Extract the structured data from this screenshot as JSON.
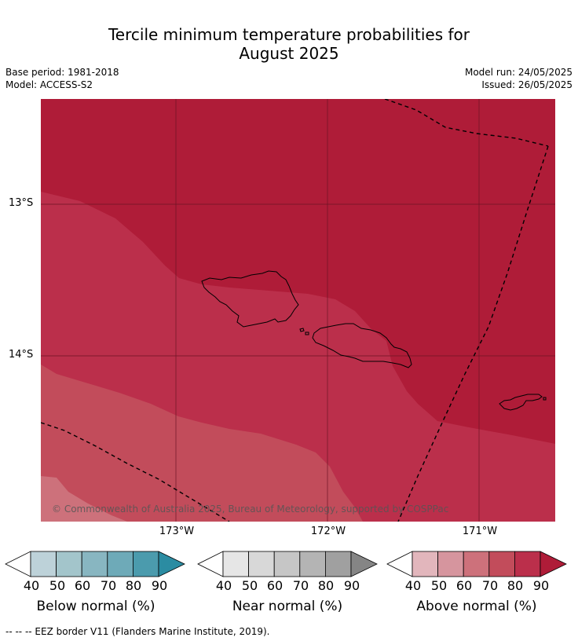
{
  "title": {
    "line1": "Tercile minimum temperature probabilities for",
    "line2": "August 2025"
  },
  "meta": {
    "base_period": "Base period: 1981-2018",
    "model": "Model: ACCESS-S2",
    "model_run": "Model run: 24/05/2025",
    "issued": "Issued: 26/05/2025"
  },
  "map": {
    "lat_labels": [
      "13°S",
      "14°S"
    ],
    "lon_labels": [
      "173°W",
      "172°W",
      "171°W"
    ],
    "copyright": "© Commonwealth of Australia 2025, Bureau of Meteorology, supported by COSPPac",
    "colors": {
      "above_90": "#af1c38",
      "above_80": "#bb2f4b",
      "above_70": "#c24c5b",
      "above_60": "#cd717b",
      "grid": "#6b1424",
      "coast": "#000000",
      "eez": "#000000"
    }
  },
  "colorbars": [
    {
      "title": "Below normal (%)",
      "ticks": [
        "40",
        "50",
        "60",
        "70",
        "80",
        "90"
      ],
      "colors": [
        "#ffffff",
        "#bdd2d9",
        "#a3c5cb",
        "#88b6c1",
        "#6eaab8",
        "#4b9bad",
        "#2b8ca2"
      ]
    },
    {
      "title": "Near normal (%)",
      "ticks": [
        "40",
        "50",
        "60",
        "70",
        "80",
        "90"
      ],
      "colors": [
        "#ffffff",
        "#e6e6e6",
        "#d8d8d8",
        "#c6c6c6",
        "#b4b4b4",
        "#a0a0a0",
        "#858585"
      ]
    },
    {
      "title": "Above normal (%)",
      "ticks": [
        "40",
        "50",
        "60",
        "70",
        "80",
        "90"
      ],
      "colors": [
        "#ffffff",
        "#e2b6bc",
        "#d6959e",
        "#cd717b",
        "#c24c5b",
        "#bb2f4b",
        "#af1c38"
      ]
    }
  ],
  "footnote": "--  --  -- EEZ border V11 (Flanders Marine Institute, 2019)."
}
